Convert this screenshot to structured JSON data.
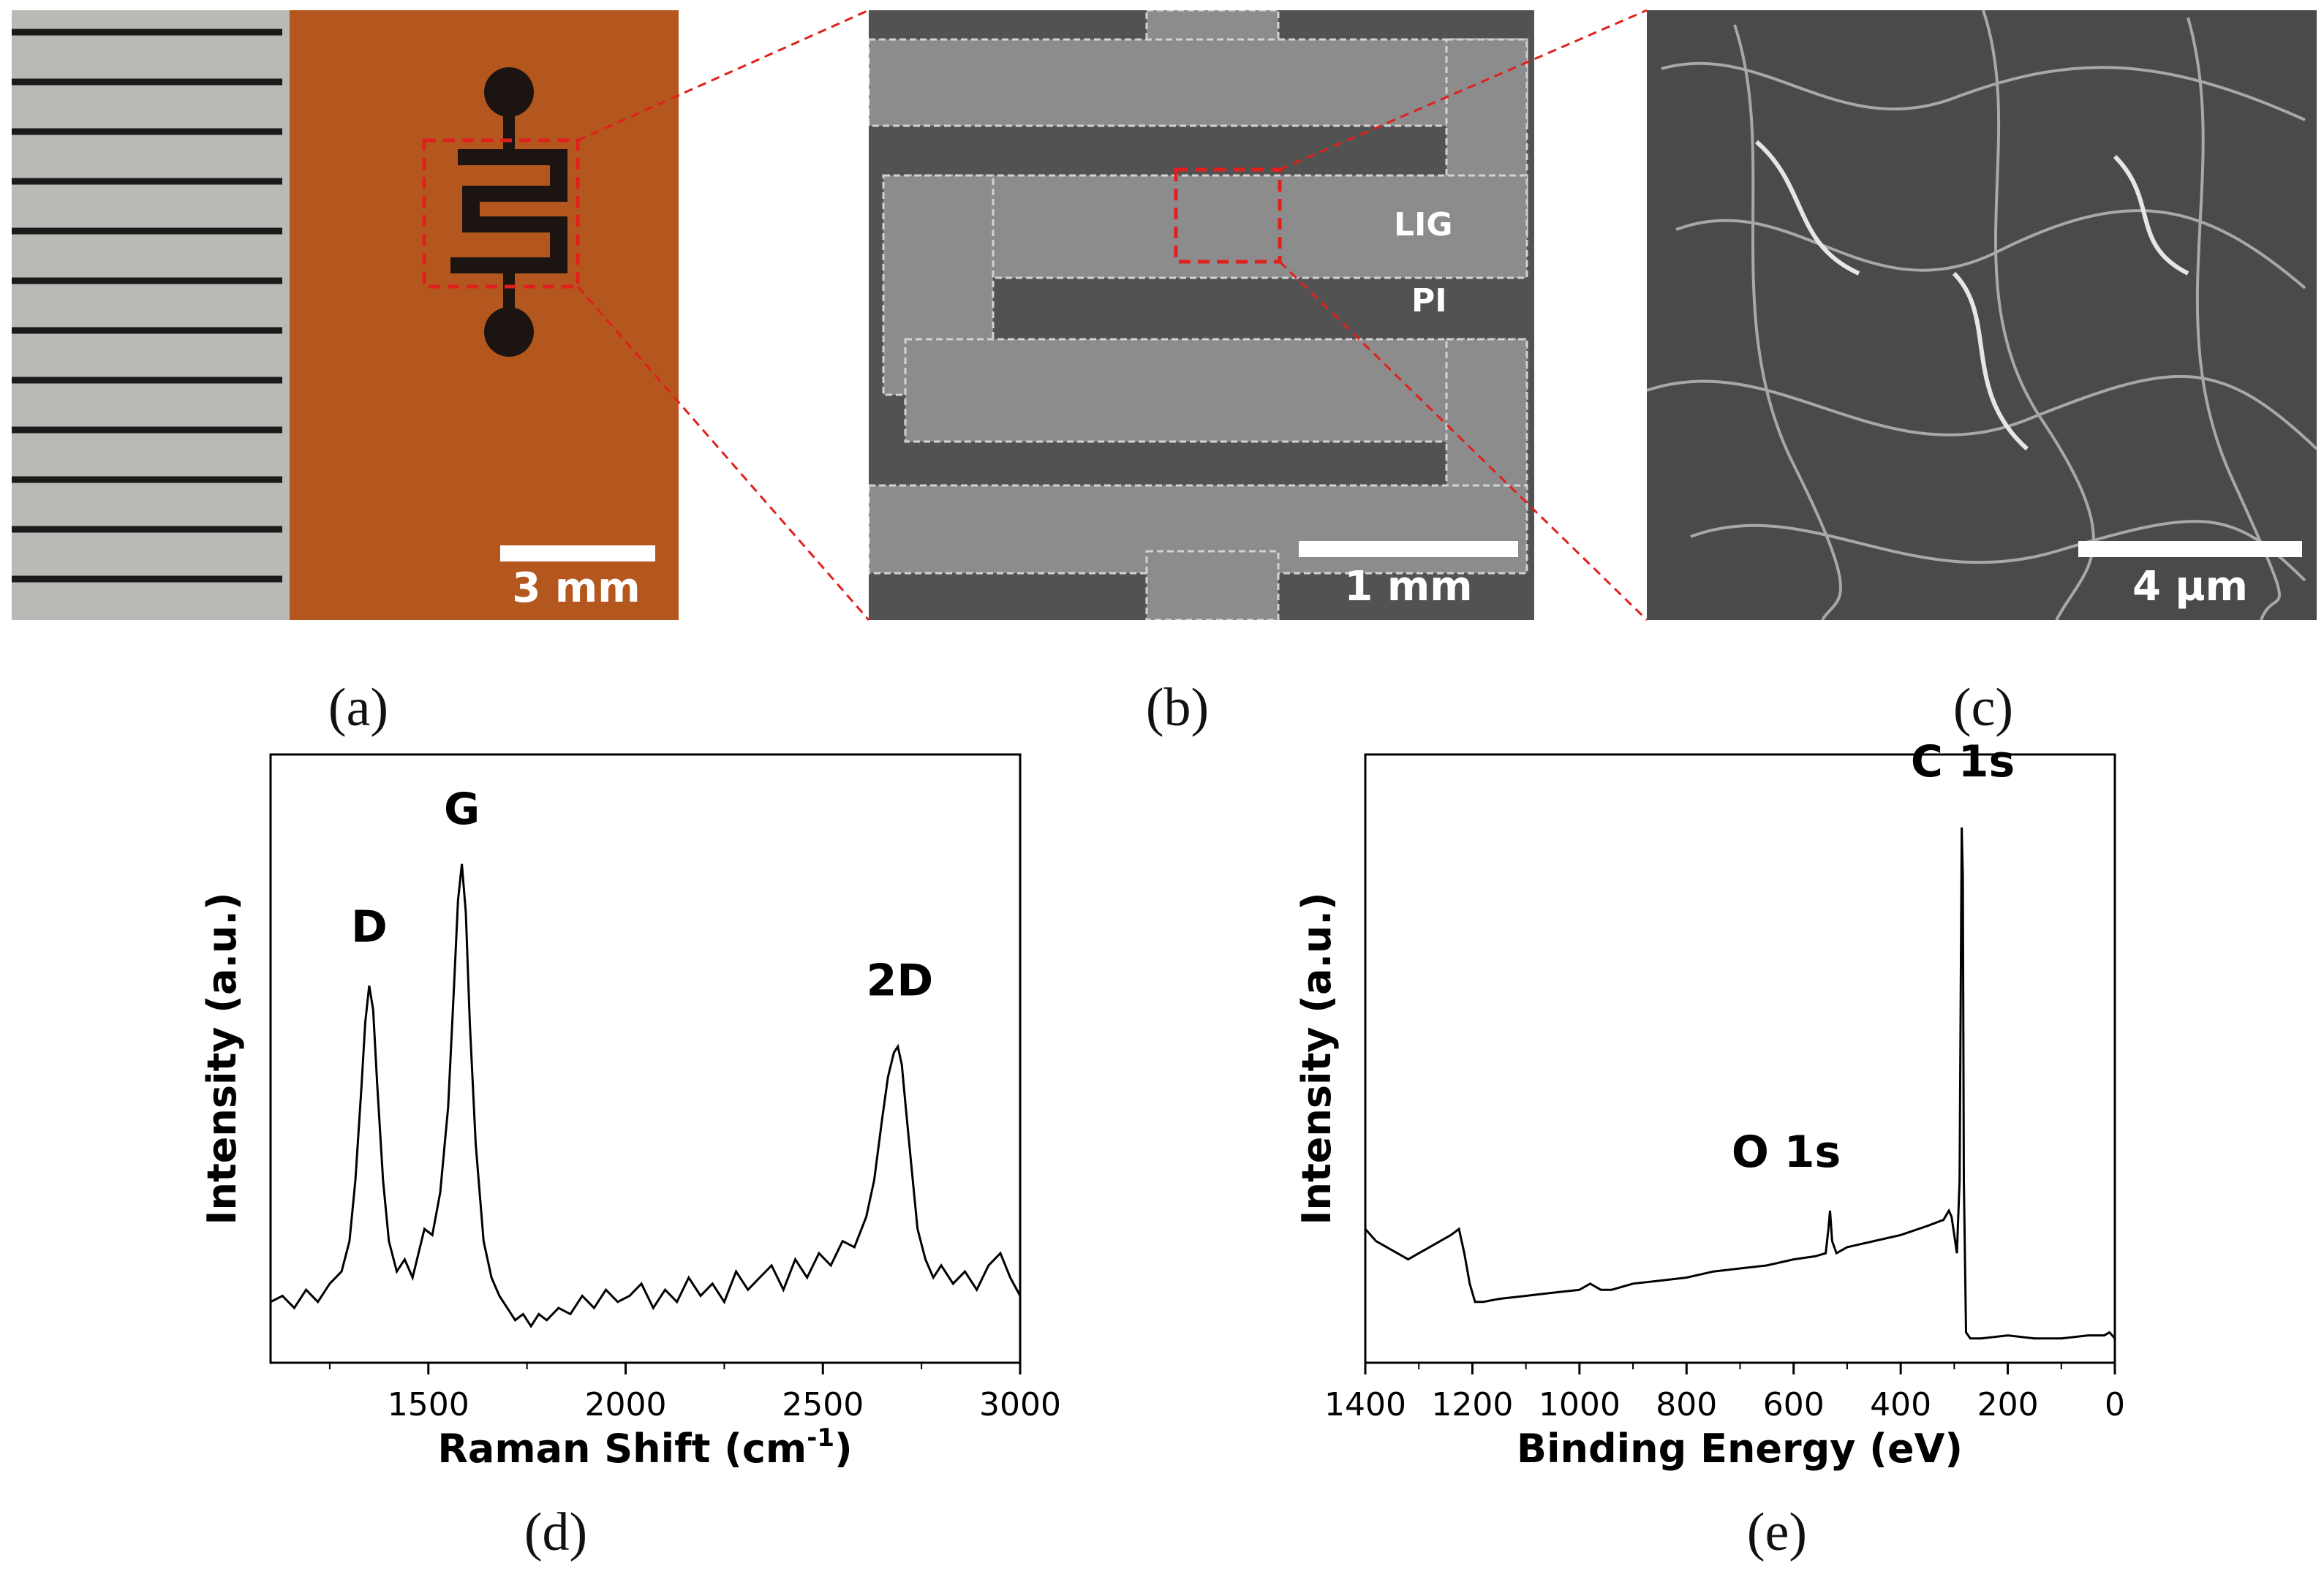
{
  "panels": {
    "a": {
      "caption": "(a)",
      "scale_label": "3 mm"
    },
    "b": {
      "caption": "(b)",
      "scale_label": "1 mm",
      "label_lig": "LIG",
      "label_pi": "PI"
    },
    "c": {
      "caption": "(c)",
      "scale_label": "4 µm"
    },
    "d": {
      "caption": "(d)"
    },
    "e": {
      "caption": "(e)"
    }
  },
  "colors": {
    "highlight_box": "#e0201c",
    "substrate": "#b4571e",
    "ruler": "#b9bab6",
    "sem_background": "#555555",
    "line": "#000000"
  },
  "chart_data": [
    {
      "type": "line",
      "panel": "d",
      "xlabel": "Raman Shift (cm",
      "xlabel_superscript": "-1",
      "xlabel_suffix": ")",
      "ylabel": "Intensity (a.u.)",
      "xlim": [
        1100,
        3000
      ],
      "ylim": [
        0,
        1
      ],
      "xticks": [
        1500,
        2000,
        2500,
        3000
      ],
      "yticks": [],
      "peaks": [
        {
          "label": "D",
          "x": 1350,
          "y": 0.62
        },
        {
          "label": "G",
          "x": 1585,
          "y": 0.82
        },
        {
          "label": "2D",
          "x": 2695,
          "y": 0.52
        }
      ],
      "series": [
        {
          "x": [
            1100,
            1130,
            1160,
            1190,
            1220,
            1250,
            1280,
            1300,
            1315,
            1330,
            1340,
            1350,
            1360,
            1370,
            1385,
            1400,
            1420,
            1440,
            1460,
            1475,
            1490,
            1510,
            1530,
            1550,
            1565,
            1575,
            1585,
            1595,
            1605,
            1620,
            1640,
            1660,
            1680,
            1700,
            1720,
            1740,
            1760,
            1780,
            1800,
            1830,
            1860,
            1890,
            1920,
            1950,
            1980,
            2010,
            2040,
            2070,
            2100,
            2130,
            2160,
            2190,
            2220,
            2250,
            2280,
            2310,
            2340,
            2370,
            2400,
            2430,
            2460,
            2490,
            2520,
            2550,
            2580,
            2610,
            2630,
            2650,
            2665,
            2680,
            2690,
            2700,
            2710,
            2725,
            2740,
            2760,
            2780,
            2800,
            2830,
            2860,
            2890,
            2920,
            2950,
            2975,
            3000
          ],
          "y": [
            0.1,
            0.11,
            0.09,
            0.12,
            0.1,
            0.13,
            0.15,
            0.2,
            0.3,
            0.45,
            0.56,
            0.62,
            0.58,
            0.46,
            0.3,
            0.2,
            0.15,
            0.17,
            0.14,
            0.18,
            0.22,
            0.21,
            0.28,
            0.42,
            0.62,
            0.76,
            0.82,
            0.74,
            0.56,
            0.36,
            0.2,
            0.14,
            0.11,
            0.09,
            0.07,
            0.08,
            0.06,
            0.08,
            0.07,
            0.09,
            0.08,
            0.11,
            0.09,
            0.12,
            0.1,
            0.11,
            0.13,
            0.09,
            0.12,
            0.1,
            0.14,
            0.11,
            0.13,
            0.1,
            0.15,
            0.12,
            0.14,
            0.16,
            0.12,
            0.17,
            0.14,
            0.18,
            0.16,
            0.2,
            0.19,
            0.24,
            0.3,
            0.4,
            0.47,
            0.51,
            0.52,
            0.49,
            0.42,
            0.32,
            0.22,
            0.17,
            0.14,
            0.16,
            0.13,
            0.15,
            0.12,
            0.16,
            0.18,
            0.14,
            0.11
          ]
        }
      ]
    },
    {
      "type": "line",
      "panel": "e",
      "xlabel": "Binding Energy (eV)",
      "ylabel": "Intensity (a.u.)",
      "xlim": [
        1400,
        0
      ],
      "ylim": [
        0,
        1
      ],
      "xticks": [
        1400,
        1200,
        1000,
        800,
        600,
        400,
        200,
        0
      ],
      "yticks": [],
      "peaks": [
        {
          "label": "O 1s",
          "x": 532,
          "y": 0.25
        },
        {
          "label": "C 1s",
          "x": 284,
          "y": 0.88
        }
      ],
      "series": [
        {
          "x": [
            1400,
            1380,
            1360,
            1340,
            1320,
            1300,
            1280,
            1260,
            1240,
            1225,
            1215,
            1205,
            1195,
            1180,
            1150,
            1100,
            1050,
            1000,
            980,
            960,
            940,
            900,
            850,
            800,
            750,
            700,
            650,
            600,
            560,
            540,
            535,
            532,
            528,
            520,
            500,
            450,
            400,
            350,
            320,
            310,
            305,
            300,
            295,
            290,
            286,
            284,
            282,
            278,
            270,
            250,
            200,
            150,
            100,
            50,
            20,
            10,
            0
          ],
          "y": [
            0.22,
            0.2,
            0.19,
            0.18,
            0.17,
            0.18,
            0.19,
            0.2,
            0.21,
            0.22,
            0.18,
            0.13,
            0.1,
            0.1,
            0.105,
            0.11,
            0.115,
            0.12,
            0.13,
            0.12,
            0.12,
            0.13,
            0.135,
            0.14,
            0.15,
            0.155,
            0.16,
            0.17,
            0.175,
            0.18,
            0.22,
            0.25,
            0.2,
            0.18,
            0.19,
            0.2,
            0.21,
            0.225,
            0.235,
            0.25,
            0.24,
            0.21,
            0.18,
            0.3,
            0.88,
            0.8,
            0.3,
            0.05,
            0.04,
            0.04,
            0.045,
            0.04,
            0.04,
            0.045,
            0.045,
            0.05,
            0.04
          ]
        }
      ]
    }
  ]
}
